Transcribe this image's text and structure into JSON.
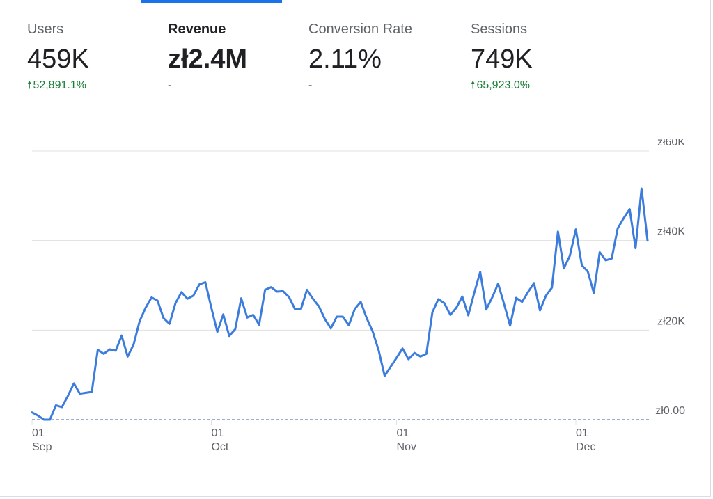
{
  "metrics": [
    {
      "label": "Users",
      "value": "459K",
      "change": "52,891.1%",
      "trend": "up"
    },
    {
      "label": "Revenue",
      "value": "zł2.4M",
      "change": "-",
      "trend": "none",
      "active": true
    },
    {
      "label": "Conversion Rate",
      "value": "2.11%",
      "change": "-",
      "trend": "none"
    },
    {
      "label": "Sessions",
      "value": "749K",
      "change": "65,923.0%",
      "trend": "up"
    }
  ],
  "colors": {
    "line": "#3c7cdc",
    "accent": "#1a73e8",
    "up": "#188038",
    "grid": "#e0e0e0",
    "baseline": "#5b7fb8"
  },
  "chart_data": {
    "type": "line",
    "x_start": "2023-09-01",
    "x_end": "2023-12-17",
    "ylim": [
      0,
      60000
    ],
    "y_ticks": [
      {
        "value": 0,
        "label": "zł0.00"
      },
      {
        "value": 20000,
        "label": "zł20K"
      },
      {
        "value": 40000,
        "label": "zł40K"
      },
      {
        "value": 60000,
        "label": "zł60K"
      }
    ],
    "x_ticks": [
      {
        "date": "2023-09-01",
        "day": "01",
        "month": "Sep"
      },
      {
        "date": "2023-10-01",
        "day": "01",
        "month": "Oct"
      },
      {
        "date": "2023-11-01",
        "day": "01",
        "month": "Nov"
      },
      {
        "date": "2023-12-01",
        "day": "01",
        "month": "Dec"
      }
    ],
    "series": [
      {
        "values": [
          1600,
          900,
          0,
          0,
          3200,
          2800,
          5300,
          8100,
          5800,
          6000,
          6200,
          15600,
          14700,
          15700,
          15400,
          18800,
          14100,
          16800,
          22000,
          25000,
          27300,
          26600,
          22700,
          21400,
          26000,
          28500,
          27000,
          27700,
          30200,
          30700,
          25000,
          19600,
          23500,
          18700,
          20200,
          27100,
          22800,
          23400,
          21200,
          29000,
          29600,
          28600,
          28700,
          27400,
          24700,
          24700,
          29000,
          27000,
          25300,
          22500,
          20400,
          23000,
          23000,
          21100,
          24700,
          26300,
          22700,
          19700,
          15500,
          9800,
          11800,
          13800,
          15900,
          13500,
          14900,
          14100,
          14700,
          24000,
          26900,
          26000,
          23400,
          25000,
          27500,
          23300,
          28300,
          33000,
          24600,
          27300,
          30400,
          25800,
          21000,
          27200,
          26300,
          28500,
          30500,
          24400,
          27700,
          29500,
          42000,
          33800,
          36600,
          42500,
          34500,
          33100,
          28300,
          37400,
          35600,
          36000,
          42700,
          45000,
          47000,
          38300,
          51600,
          40000
        ]
      }
    ]
  }
}
